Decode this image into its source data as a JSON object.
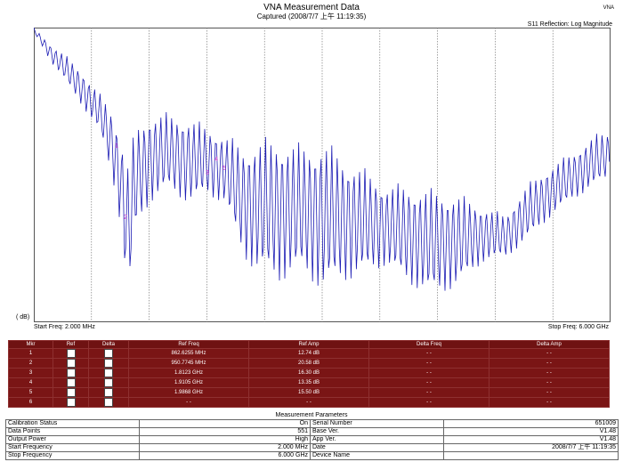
{
  "window": {
    "title": "VNA Measurement Data",
    "captured": "Captured  (2008/7/7 上午 11:19:35)",
    "tag": "VNA"
  },
  "plot": {
    "trace_label": "S11 Reflection: Log Magnitude",
    "y_unit": "( dB)",
    "start_label": "Start Freq: 2.000 MHz",
    "stop_label": "Stop Freq: 6.000 GHz",
    "trace_color": "#1c1cb4",
    "marker_color": "#cc33cc"
  },
  "markers": {
    "headers": [
      "Mkr",
      "Ref",
      "Delta",
      "Ref Freq",
      "Ref Amp",
      "Delta Freq",
      "Delta Amp"
    ],
    "rows": [
      {
        "mkr": "1",
        "ref_freq": "862.6255 MHz",
        "ref_amp": "12.74 dB",
        "delta_freq": "- -",
        "delta_amp": "- -"
      },
      {
        "mkr": "2",
        "ref_freq": "950.7745 MHz",
        "ref_amp": "20.58 dB",
        "delta_freq": "- -",
        "delta_amp": "- -"
      },
      {
        "mkr": "3",
        "ref_freq": "1.8123 GHz",
        "ref_amp": "16.30 dB",
        "delta_freq": "- -",
        "delta_amp": "- -"
      },
      {
        "mkr": "4",
        "ref_freq": "1.9105 GHz",
        "ref_amp": "13.35 dB",
        "delta_freq": "- -",
        "delta_amp": "- -"
      },
      {
        "mkr": "5",
        "ref_freq": "1.9868 GHz",
        "ref_amp": "15.50 dB",
        "delta_freq": "- -",
        "delta_amp": "- -"
      },
      {
        "mkr": "6",
        "ref_freq": "- -",
        "ref_amp": "- -",
        "delta_freq": "- -",
        "delta_amp": "- -"
      }
    ]
  },
  "parameters": {
    "title": "Measurement Parameters",
    "left": [
      {
        "label": "Calibration Status",
        "value": "On"
      },
      {
        "label": "Data Points",
        "value": "551"
      },
      {
        "label": "Output Power",
        "value": "High"
      },
      {
        "label": "Start Frequency",
        "value": "2.000 MHz"
      },
      {
        "label": "Stop Frequency",
        "value": "6.000 GHz"
      }
    ],
    "right": [
      {
        "label": "Serial Number",
        "value": "651009"
      },
      {
        "label": "Base Ver.",
        "value": "V1.48"
      },
      {
        "label": "App Ver.",
        "value": "V1.48"
      },
      {
        "label": "Date",
        "value": "2008/7/7 上午 11:19:35"
      },
      {
        "label": "Device Name",
        "value": ""
      }
    ]
  }
}
